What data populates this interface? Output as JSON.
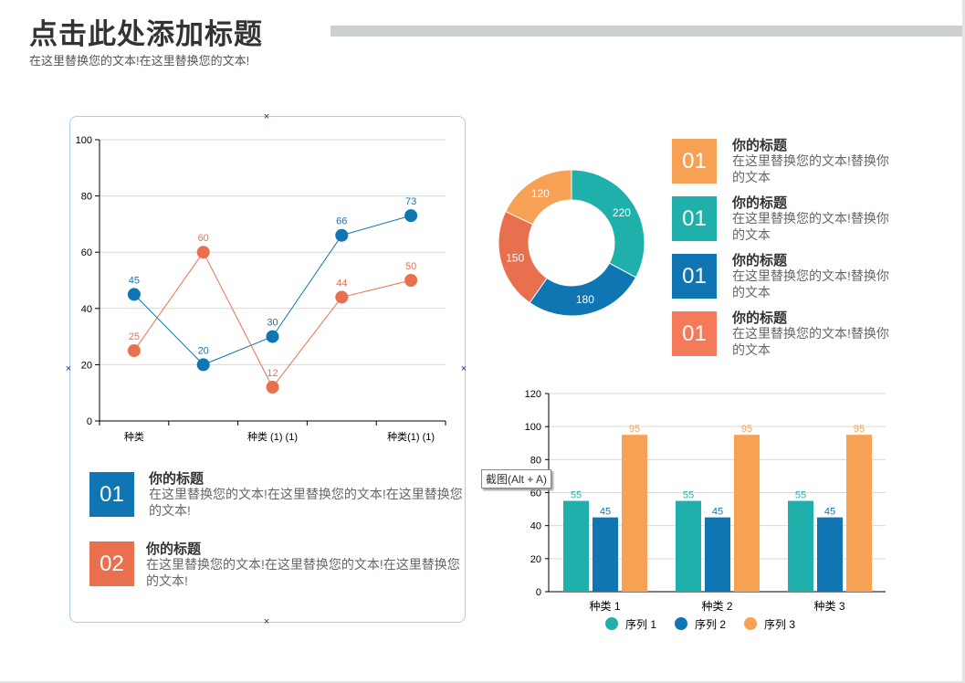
{
  "header": {
    "title": "点击此处添加标题",
    "subtitle": "在这里替换您的文本!在这里替换您的文本!"
  },
  "colors": {
    "blue": "#1075b3",
    "red": "#e9704f",
    "teal": "#20b0ac",
    "orange": "#f7a154",
    "coral": "#f47a5a",
    "title_bar": "#cdd0d3"
  },
  "left_items": [
    {
      "num": "01",
      "title": "你的标题",
      "text": "在这里替换您的文本!在这里替换您的文本!在这里替换您的文本!",
      "color": "#1075b3"
    },
    {
      "num": "02",
      "title": "你的标题",
      "text": "在这里替换您的文本!在这里替换您的文本!在这里替换您的文本!",
      "color": "#e9704f"
    }
  ],
  "right_items": [
    {
      "num": "01",
      "title": "你的标题",
      "text": "在这里替换您的文本!替换你的文本",
      "color": "#f7a154"
    },
    {
      "num": "01",
      "title": "你的标题",
      "text": "在这里替换您的文本!替换你的文本",
      "color": "#20b0ac"
    },
    {
      "num": "01",
      "title": "你的标题",
      "text": "在这里替换您的文本!替换你的文本",
      "color": "#1075b3"
    },
    {
      "num": "01",
      "title": "你的标题",
      "text": "在这里替换您的文本!替换你的文本",
      "color": "#f47a5a"
    }
  ],
  "tooltip": "截图(Alt + A)",
  "chart_data": [
    {
      "type": "line",
      "categories": [
        "种类",
        "",
        "种类 (1) (1)",
        "",
        "种类(1) (1)"
      ],
      "series": [
        {
          "values": [
            45,
            20,
            30,
            66,
            73
          ],
          "color": "#1075b3"
        },
        {
          "values": [
            25,
            60,
            12,
            44,
            50
          ],
          "color": "#e9704f"
        }
      ],
      "ylim": [
        0,
        100
      ],
      "yticks": [
        0,
        20,
        40,
        60,
        80,
        100
      ],
      "grid": true,
      "data_labels": true
    },
    {
      "type": "pie",
      "donut": true,
      "values": [
        220,
        180,
        150,
        120
      ],
      "colors": [
        "#20b0ac",
        "#1075b3",
        "#e9704f",
        "#f7a154"
      ],
      "data_labels": true
    },
    {
      "type": "bar",
      "categories": [
        "种类 1",
        "种类 2",
        "种类 3"
      ],
      "series": [
        {
          "name": "序列 1",
          "values": [
            55,
            55,
            55
          ],
          "color": "#20b0ac"
        },
        {
          "name": "序列 2",
          "values": [
            45,
            45,
            45
          ],
          "color": "#1075b3"
        },
        {
          "name": "序列 3",
          "values": [
            95,
            95,
            95
          ],
          "color": "#f7a154"
        }
      ],
      "ylim": [
        0,
        120
      ],
      "yticks": [
        0,
        20,
        40,
        60,
        80,
        100,
        120
      ],
      "grid": true,
      "legend": "bottom",
      "data_labels": true
    }
  ]
}
